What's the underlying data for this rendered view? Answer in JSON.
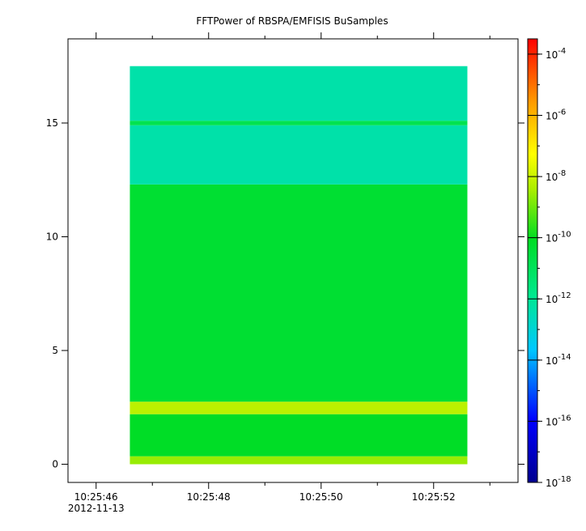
{
  "chart_data": {
    "type": "heatmap",
    "title": "FFTPower of RBSPA/EMFISIS  BuSamples",
    "xlabel": "",
    "ylabel": "",
    "x_ticks": [
      {
        "label": "10:25:46",
        "sublabel": "2012-11-13"
      },
      {
        "label": "10:25:48",
        "sublabel": ""
      },
      {
        "label": "10:25:50",
        "sublabel": ""
      },
      {
        "label": "10:25:52",
        "sublabel": ""
      }
    ],
    "xlim_seconds": [
      45.5,
      53.5
    ],
    "x_major_seconds": [
      46,
      48,
      50,
      52
    ],
    "x_minor_seconds": [
      47,
      49,
      51,
      53
    ],
    "x_data_range_seconds": [
      46.6,
      52.6
    ],
    "ylim": [
      -0.8,
      18.7
    ],
    "y_ticks": [
      0,
      5,
      10,
      15
    ],
    "y_data_range": [
      0,
      17.5
    ],
    "log_scale_colorbar": true,
    "colorbar": {
      "range_exponent": [
        -18,
        -3.5
      ],
      "tick_exponents": [
        -18,
        -16,
        -14,
        -12,
        -10,
        -8,
        -6,
        -4
      ],
      "tick_labels": [
        "10",
        "10",
        "10",
        "10",
        "10",
        "10",
        "10",
        "10"
      ],
      "tick_exponent_labels": [
        "-18",
        "-16",
        "-14",
        "-12",
        "-10",
        "-8",
        "-6",
        "-4"
      ]
    },
    "spectrum_bands": [
      {
        "y_from": 0,
        "y_to": 0.35,
        "log_power": -8.6
      },
      {
        "y_from": 0.35,
        "y_to": 2.2,
        "log_power": -10.1
      },
      {
        "y_from": 2.2,
        "y_to": 2.75,
        "log_power": -8.2
      },
      {
        "y_from": 2.75,
        "y_to": 12.3,
        "log_power": -10.3
      },
      {
        "y_from": 12.3,
        "y_to": 14.9,
        "log_power": -12.3
      },
      {
        "y_from": 14.9,
        "y_to": 15.1,
        "log_power": -10.8
      },
      {
        "y_from": 15.1,
        "y_to": 17.5,
        "log_power": -12.3
      }
    ],
    "grid": false,
    "legend": "colorbar-right"
  }
}
